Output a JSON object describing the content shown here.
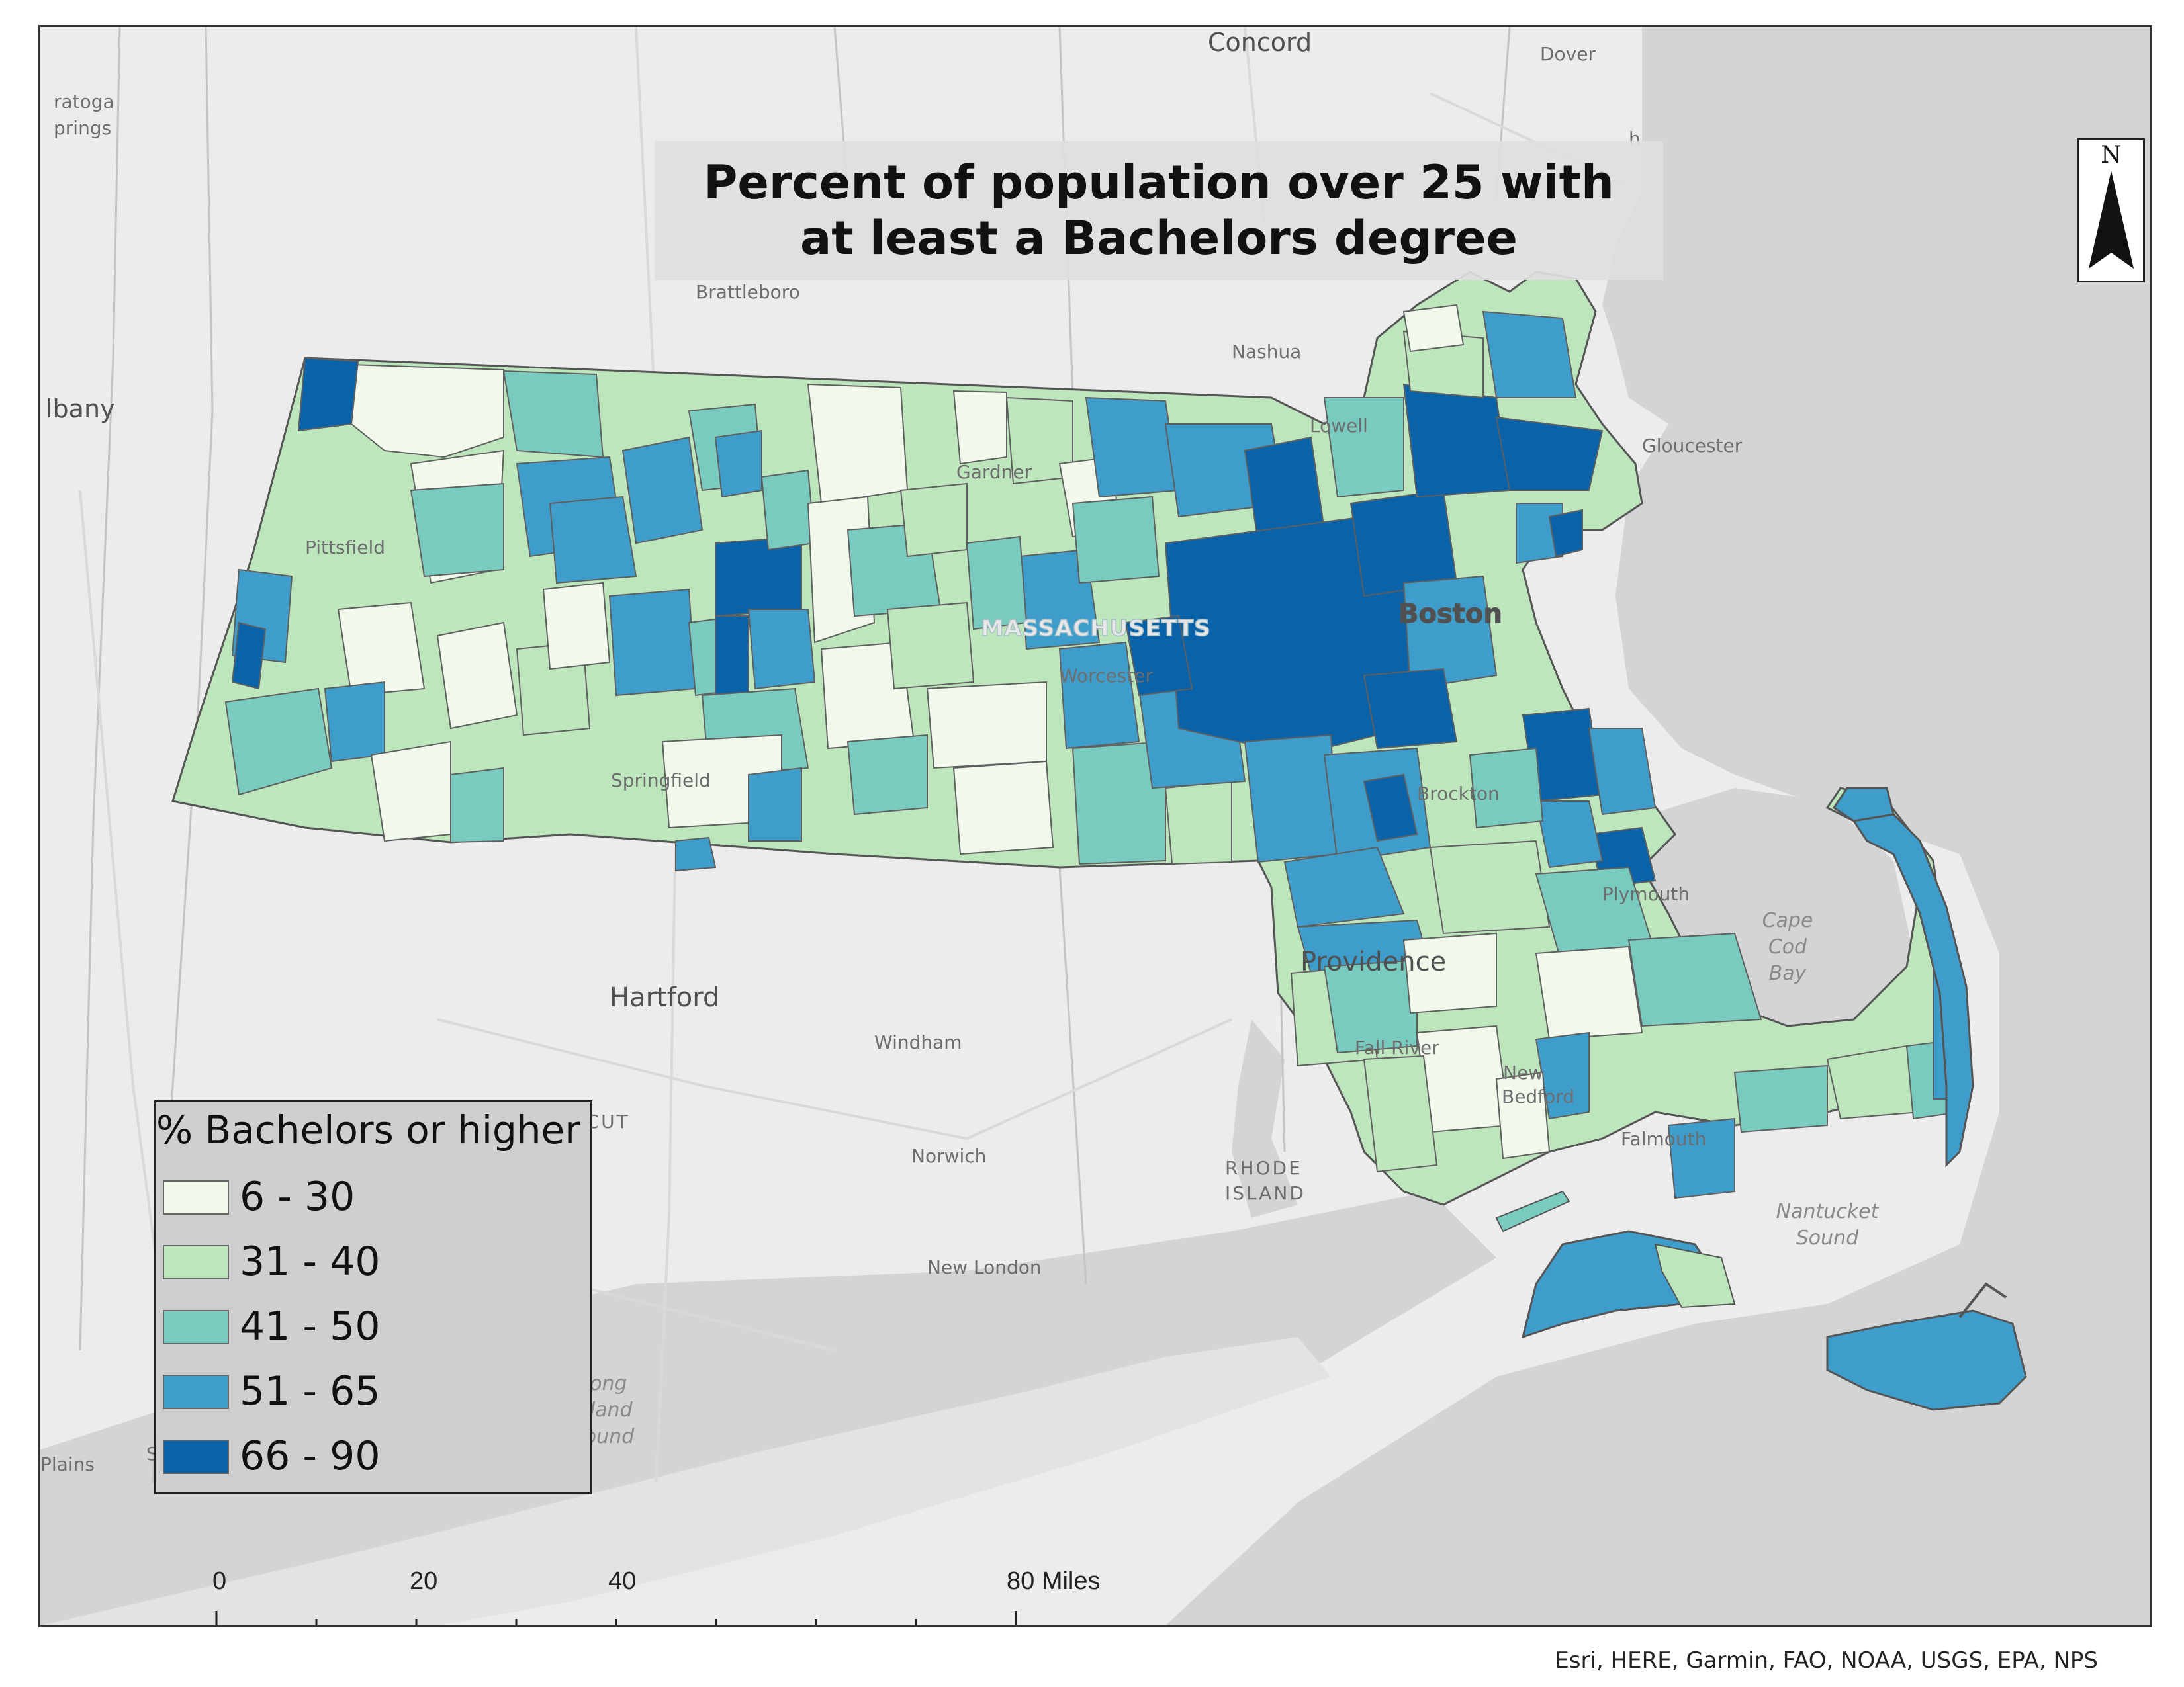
{
  "map": {
    "title": "Percent of population over 25 with at least a Bachelors degree",
    "state_label": "MASSACHUSETTS",
    "background_color": "#ececec",
    "ocean_color": "#d3d4d5",
    "land_color": "#ececec",
    "boundary_color": "#555555"
  },
  "places": [
    {
      "name": "Concord",
      "size": "medium"
    },
    {
      "name": "Dover",
      "size": "small"
    },
    {
      "name": "ratoga",
      "size": "small"
    },
    {
      "name": "prings",
      "size": "small"
    },
    {
      "name": "h",
      "size": "small"
    },
    {
      "name": "Brattleboro",
      "size": "small"
    },
    {
      "name": "Nashua",
      "size": "small"
    },
    {
      "name": "lbany",
      "size": "medium"
    },
    {
      "name": "Lowell",
      "size": "small"
    },
    {
      "name": "Gloucester",
      "size": "small"
    },
    {
      "name": "Gardner",
      "size": "small"
    },
    {
      "name": "Pittsfield",
      "size": "small"
    },
    {
      "name": "Boston",
      "size": "large"
    },
    {
      "name": "Worcester",
      "size": "small"
    },
    {
      "name": "Springfield",
      "size": "small"
    },
    {
      "name": "Brockton",
      "size": "small"
    },
    {
      "name": "Plymouth",
      "size": "small"
    },
    {
      "name": "Providence",
      "size": "large"
    },
    {
      "name": "Hartford",
      "size": "large"
    },
    {
      "name": "Windham",
      "size": "small"
    },
    {
      "name": "Fall River",
      "size": "small"
    },
    {
      "name": "New",
      "size": "small"
    },
    {
      "name": "Bedford",
      "size": "small"
    },
    {
      "name": "Falmouth",
      "size": "small"
    },
    {
      "name": "Norwich",
      "size": "small"
    },
    {
      "name": "New London",
      "size": "small"
    },
    {
      "name": "Stamford",
      "size": "small"
    },
    {
      "name": "Plains",
      "size": "small"
    },
    {
      "name": "ECTICUT",
      "size": "state"
    },
    {
      "name": "RHODE",
      "size": "state"
    },
    {
      "name": "ISLAND",
      "size": "state"
    }
  ],
  "water_labels": [
    {
      "lines": [
        "Cape",
        "Cod",
        "Bay"
      ]
    },
    {
      "lines": [
        "Nantucket",
        "Sound"
      ]
    },
    {
      "lines": [
        "Long",
        "Island",
        "Sound"
      ]
    }
  ],
  "north_arrow": {
    "letter": "N"
  },
  "legend": {
    "title": "% Bachelors or higher",
    "classes": [
      {
        "label": "6 - 30",
        "color": "#f1f9ec"
      },
      {
        "label": "31 - 40",
        "color": "#bde6bd"
      },
      {
        "label": "41 - 50",
        "color": "#79cabf"
      },
      {
        "label": "51 - 65",
        "color": "#3f9dcc"
      },
      {
        "label": "66 - 90",
        "color": "#0a62a8"
      }
    ]
  },
  "scale_bar": {
    "labels": [
      "0",
      "20",
      "40",
      "80 Miles"
    ]
  },
  "attribution": "Esri, HERE, Garmin, FAO, NOAA, USGS, EPA, NPS"
}
